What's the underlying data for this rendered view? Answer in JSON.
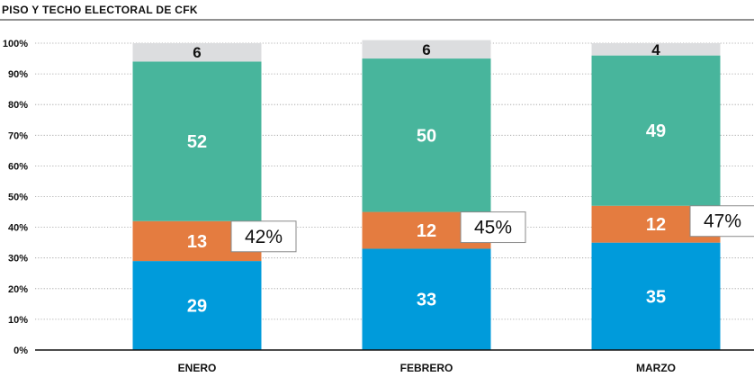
{
  "chart_data": {
    "type": "bar",
    "stacked": true,
    "title": "PISO Y TECHO ELECTORAL DE CFK",
    "categories": [
      "ENERO",
      "FEBRERO",
      "MARZO"
    ],
    "series": [
      {
        "values": [
          29,
          33,
          35
        ],
        "color": "#009bdb"
      },
      {
        "values": [
          13,
          12,
          12
        ],
        "color": "#e47c40"
      },
      {
        "values": [
          52,
          50,
          49
        ],
        "color": "#48b59c"
      },
      {
        "values": [
          6,
          6,
          4
        ],
        "color": "#dcdddf"
      }
    ],
    "callouts": [
      "42%",
      "45%",
      "47%"
    ],
    "yticks": [
      "0%",
      "10%",
      "20%",
      "30%",
      "40%",
      "50%",
      "60%",
      "70%",
      "80%",
      "90%",
      "100%"
    ],
    "ylim": [
      0,
      100
    ],
    "grid": true,
    "legend": "none"
  }
}
